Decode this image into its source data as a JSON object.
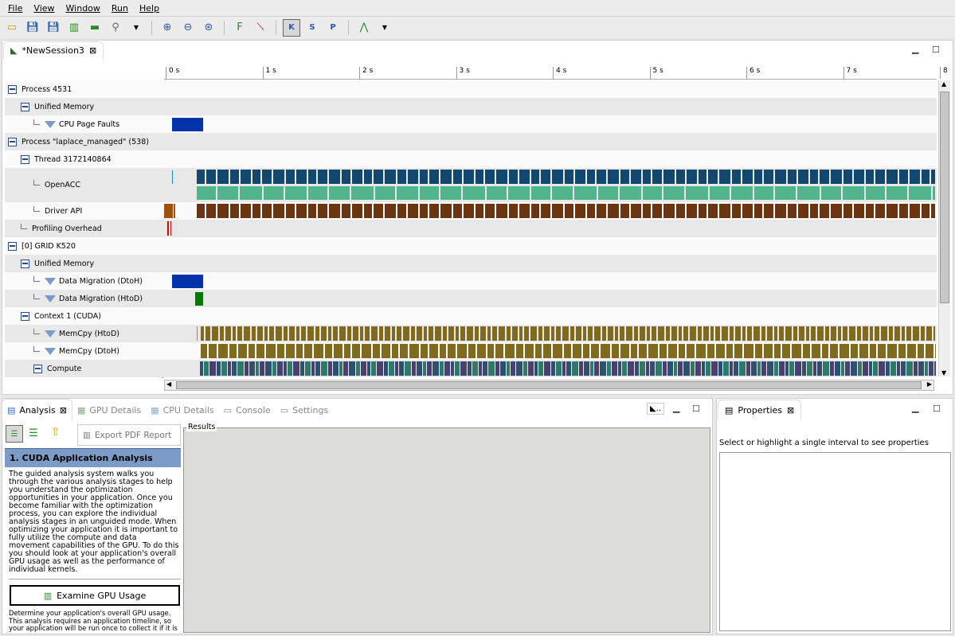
{
  "menu": [
    "File",
    "View",
    "Window",
    "Run",
    "Help"
  ],
  "toolbar": {
    "icons": [
      "new-session-icon",
      "save-icon",
      "save-as-icon",
      "generate-timeline-icon",
      "run-icon",
      "search-icon",
      "dropdown-icon",
      "zoom-in-icon",
      "zoom-out-icon",
      "zoom-fit-icon",
      "filter-icon",
      "clear-filter-icon",
      "kernel-color-icon",
      "stream-color-icon",
      "process-color-icon",
      "dependency-icon",
      "dropdown-icon"
    ],
    "k": "K",
    "s": "S",
    "p": "P"
  },
  "editor": {
    "tab": "*NewSession3"
  },
  "ruler": {
    "ticks": [
      "0 s",
      "1 s",
      "2 s",
      "3 s",
      "4 s",
      "5 s",
      "6 s",
      "7 s",
      "8"
    ]
  },
  "rows": [
    {
      "label": "Process 4531",
      "type": "minus",
      "indent": 0
    },
    {
      "label": "Unified Memory",
      "type": "minus",
      "indent": 1
    },
    {
      "label": "CPU Page Faults",
      "type": "filter",
      "indent": 2
    },
    {
      "label": "Process \"laplace_managed\" (538)",
      "type": "minus",
      "indent": 0
    },
    {
      "label": "Thread 3172140864",
      "type": "minus",
      "indent": 1
    },
    {
      "label": "OpenACC",
      "type": "leaf",
      "indent": 2
    },
    {
      "label": "Driver API",
      "type": "leaf",
      "indent": 2
    },
    {
      "label": "Profiling Overhead",
      "type": "leaf",
      "indent": 1
    },
    {
      "label": "[0] GRID K520",
      "type": "minus",
      "indent": 0
    },
    {
      "label": "Unified Memory",
      "type": "minus",
      "indent": 1
    },
    {
      "label": "Data Migration (DtoH)",
      "type": "filter",
      "indent": 2
    },
    {
      "label": "Data Migration (HtoD)",
      "type": "filter",
      "indent": 2
    },
    {
      "label": "Context 1 (CUDA)",
      "type": "minus",
      "indent": 1
    },
    {
      "label": "MemCpy (HtoD)",
      "type": "filter",
      "indent": 2
    },
    {
      "label": "MemCpy (DtoH)",
      "type": "filter",
      "indent": 2
    },
    {
      "label": "Compute",
      "type": "minus",
      "indent": 2
    }
  ],
  "colors": {
    "page_fault": "#0033aa",
    "openacc_top": "#13486e",
    "openacc_bottom": "#52b48c",
    "driver": "#6b3511",
    "overhead": "#dd0000",
    "migration_dtoh": "#0033aa",
    "migration_htod": "#007a00",
    "memcpy": "#7f6a1e",
    "compute_a": "#2f4f6f",
    "compute_b": "#2e7a6a"
  },
  "bottom": {
    "tabs": [
      "Analysis",
      "GPU Details",
      "CPU Details",
      "Console",
      "Settings"
    ],
    "export": "Export PDF Report",
    "results_label": "Results",
    "section_title": "1. CUDA Application Analysis",
    "guide": "The guided analysis system walks you through the various analysis stages to help you understand the optimization opportunities in your application. Once you become familiar with the optimization process, you can explore the individual analysis stages in an unguided mode. When optimizing your application it is important to fully utilize the compute and data movement capabilities of the GPU. To do this you should look at your application's overall GPU usage as well as the performance of individual kernels.",
    "examine": "Examine GPU Usage",
    "examine_desc": "Determine your application's overall GPU usage. This analysis requires an application timeline, so your application will be run once to collect it if it is not"
  },
  "properties": {
    "tab": "Properties",
    "message": "Select or highlight a single interval to see properties"
  }
}
